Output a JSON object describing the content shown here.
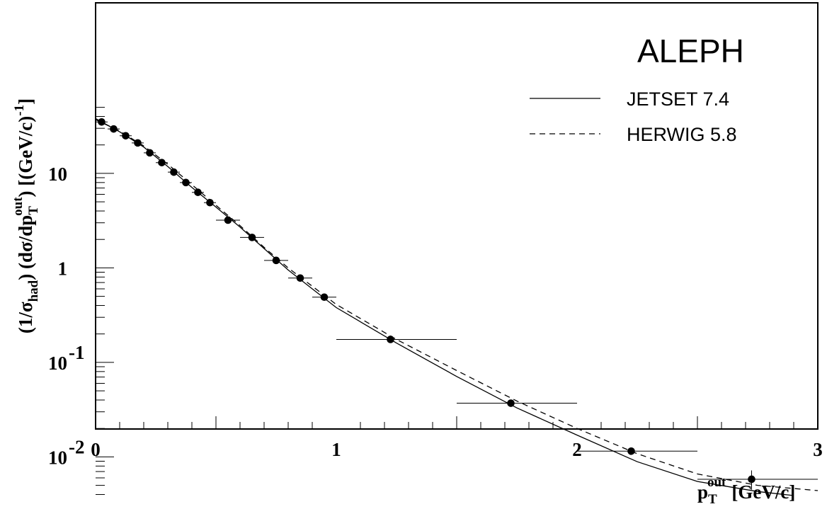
{
  "chart_data": {
    "type": "scatter",
    "experiment": "ALEPH",
    "xlabel": {
      "base": "p",
      "sub": "T",
      "sup": "out",
      "unit": "[GeV/c]"
    },
    "ylabel": {
      "prefix": "(1/σ",
      "prefix_sub": "had",
      "middle": ") (dσ/dp",
      "middle_sub": "T",
      "middle_sup": "out",
      "suffix": ") [(GeV/c)",
      "suffix_sup": "-1",
      "end": "]"
    },
    "xlim": [
      0,
      3
    ],
    "ylim": [
      0.0038,
      50
    ],
    "yscale": "log",
    "x_ticks": [
      {
        "value": 0,
        "label": "0"
      },
      {
        "value": 1,
        "label": "1"
      },
      {
        "value": 2,
        "label": "2"
      },
      {
        "value": 3,
        "label": "3"
      }
    ],
    "y_ticks": [
      {
        "value": 10,
        "base": "10",
        "exp": ""
      },
      {
        "value": 1,
        "base": "1",
        "exp": ""
      },
      {
        "value": 0.1,
        "base": "10",
        "exp": "-1"
      },
      {
        "value": 0.01,
        "base": "10",
        "exp": "-2"
      }
    ],
    "legend": {
      "position": "top-right",
      "entries": [
        {
          "label": "JETSET 7.4",
          "style": "solid"
        },
        {
          "label": "HERWIG 5.8",
          "style": "dashed"
        }
      ]
    },
    "data_points": [
      {
        "x": 0.025,
        "y": 35.0,
        "xlo": 0.0,
        "xhi": 0.05
      },
      {
        "x": 0.075,
        "y": 29.5,
        "xlo": 0.05,
        "xhi": 0.1
      },
      {
        "x": 0.125,
        "y": 25.0,
        "xlo": 0.1,
        "xhi": 0.15
      },
      {
        "x": 0.175,
        "y": 21.0,
        "xlo": 0.15,
        "xhi": 0.2
      },
      {
        "x": 0.225,
        "y": 16.5,
        "xlo": 0.2,
        "xhi": 0.25
      },
      {
        "x": 0.275,
        "y": 13.0,
        "xlo": 0.25,
        "xhi": 0.3
      },
      {
        "x": 0.325,
        "y": 10.3,
        "xlo": 0.3,
        "xhi": 0.35
      },
      {
        "x": 0.375,
        "y": 8.0,
        "xlo": 0.35,
        "xhi": 0.4
      },
      {
        "x": 0.425,
        "y": 6.3,
        "xlo": 0.4,
        "xhi": 0.45
      },
      {
        "x": 0.475,
        "y": 4.9,
        "xlo": 0.45,
        "xhi": 0.5
      },
      {
        "x": 0.55,
        "y": 3.2,
        "xlo": 0.5,
        "xhi": 0.6
      },
      {
        "x": 0.65,
        "y": 2.1,
        "xlo": 0.6,
        "xhi": 0.7
      },
      {
        "x": 0.75,
        "y": 1.2,
        "xlo": 0.7,
        "xhi": 0.8
      },
      {
        "x": 0.85,
        "y": 0.78,
        "xlo": 0.8,
        "xhi": 0.9
      },
      {
        "x": 0.95,
        "y": 0.49,
        "xlo": 0.9,
        "xhi": 1.0
      },
      {
        "x": 1.225,
        "y": 0.175,
        "xlo": 1.0,
        "xhi": 1.5
      },
      {
        "x": 1.725,
        "y": 0.037,
        "xlo": 1.5,
        "xhi": 2.0
      },
      {
        "x": 2.225,
        "y": 0.0115,
        "xlo": 2.0,
        "xhi": 2.5
      },
      {
        "x": 2.725,
        "y": 0.0058,
        "xlo": 2.5,
        "xhi": 3.0,
        "ylo": 0.0045,
        "yhi": 0.0072
      }
    ],
    "series": [
      {
        "name": "JETSET 7.4",
        "style": "solid",
        "points": [
          [
            0,
            38
          ],
          [
            0.1,
            27.5
          ],
          [
            0.2,
            19
          ],
          [
            0.3,
            11.8
          ],
          [
            0.4,
            7.1
          ],
          [
            0.5,
            4.4
          ],
          [
            0.6,
            2.7
          ],
          [
            0.7,
            1.6
          ],
          [
            0.8,
            0.95
          ],
          [
            0.9,
            0.6
          ],
          [
            1.0,
            0.38
          ],
          [
            1.25,
            0.16
          ],
          [
            1.5,
            0.071
          ],
          [
            1.75,
            0.033
          ],
          [
            2.0,
            0.017
          ],
          [
            2.25,
            0.0089
          ],
          [
            2.5,
            0.0055
          ],
          [
            2.75,
            0.0043
          ],
          [
            2.9,
            0.0039
          ]
        ]
      },
      {
        "name": "HERWIG 5.8",
        "style": "dashed",
        "points": [
          [
            0,
            37
          ],
          [
            0.1,
            28
          ],
          [
            0.2,
            19.5
          ],
          [
            0.3,
            12.5
          ],
          [
            0.4,
            7.6
          ],
          [
            0.5,
            4.6
          ],
          [
            0.6,
            2.8
          ],
          [
            0.7,
            1.65
          ],
          [
            0.8,
            1.0
          ],
          [
            0.9,
            0.64
          ],
          [
            1.0,
            0.41
          ],
          [
            1.25,
            0.175
          ],
          [
            1.5,
            0.082
          ],
          [
            1.75,
            0.039
          ],
          [
            2.0,
            0.02
          ],
          [
            2.25,
            0.0108
          ],
          [
            2.5,
            0.0066
          ],
          [
            2.75,
            0.005
          ],
          [
            3.0,
            0.0044
          ]
        ]
      }
    ]
  }
}
